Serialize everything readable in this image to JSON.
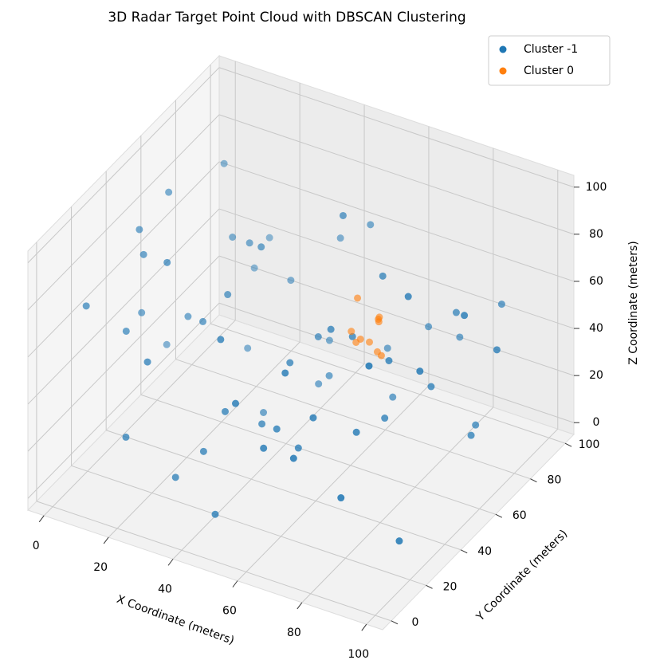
{
  "chart_data": {
    "type": "scatter3d",
    "title": "3D Radar Target Point Cloud with DBSCAN Clustering",
    "xlabel": "X Coordinate (meters)",
    "ylabel": "Y Coordinate (meters)",
    "zlabel": "Z Coordinate (meters)",
    "xlim": [
      -5,
      105
    ],
    "ylim": [
      -5,
      105
    ],
    "zlim": [
      -5,
      105
    ],
    "xticks": [
      0,
      20,
      40,
      60,
      80,
      100
    ],
    "yticks": [
      0,
      20,
      40,
      60,
      80,
      100
    ],
    "zticks": [
      0,
      20,
      40,
      60,
      80,
      100
    ],
    "grid": true,
    "legend": "upper right",
    "series": [
      {
        "name": "Cluster -1",
        "color": "#1f77b4",
        "x": [
          5,
          12,
          8,
          20,
          15,
          3,
          30,
          25,
          10,
          18,
          40,
          35,
          45,
          50,
          28,
          60,
          55,
          70,
          65,
          80,
          75,
          90,
          85,
          95,
          88,
          72,
          62,
          48,
          38,
          22,
          14,
          6,
          33,
          44,
          58,
          66,
          78,
          92,
          98,
          84,
          52,
          42,
          26,
          16,
          9,
          36,
          54,
          68,
          82,
          94,
          70,
          60,
          46,
          30,
          20,
          12,
          88,
          76,
          64,
          50,
          40,
          24,
          56,
          86,
          100
        ],
        "y": [
          10,
          20,
          35,
          5,
          50,
          60,
          15,
          40,
          80,
          70,
          25,
          55,
          10,
          90,
          85,
          30,
          65,
          20,
          75,
          45,
          95,
          15,
          60,
          35,
          80,
          5,
          45,
          70,
          95,
          25,
          90,
          40,
          60,
          15,
          85,
          50,
          30,
          70,
          55,
          10,
          40,
          75,
          65,
          95,
          50,
          20,
          5,
          90,
          80,
          25,
          60,
          10,
          35,
          45,
          75,
          30,
          95,
          50,
          15,
          60,
          85,
          10,
          25,
          45,
          70
        ],
        "z": [
          75,
          60,
          90,
          30,
          45,
          20,
          10,
          55,
          85,
          65,
          35,
          80,
          5,
          70,
          40,
          25,
          95,
          50,
          15,
          60,
          30,
          85,
          40,
          70,
          10,
          45,
          65,
          20,
          55,
          90,
          35,
          50,
          5,
          75,
          25,
          60,
          40,
          15,
          80,
          30,
          50,
          10,
          70,
          45,
          95,
          20,
          60,
          35,
          55,
          5,
          80,
          40,
          25,
          65,
          15,
          85,
          50,
          30,
          70,
          45,
          20,
          60,
          35,
          90,
          55
        ]
      },
      {
        "name": "Cluster 0",
        "color": "#ff7f0e",
        "x": [
          52,
          55,
          58,
          54,
          60,
          50,
          56,
          62,
          53,
          57
        ],
        "y": [
          78,
          75,
          80,
          82,
          76,
          79,
          84,
          74,
          77,
          81
        ],
        "z": [
          30,
          35,
          40,
          28,
          45,
          33,
          38,
          32,
          50,
          26
        ]
      }
    ]
  }
}
